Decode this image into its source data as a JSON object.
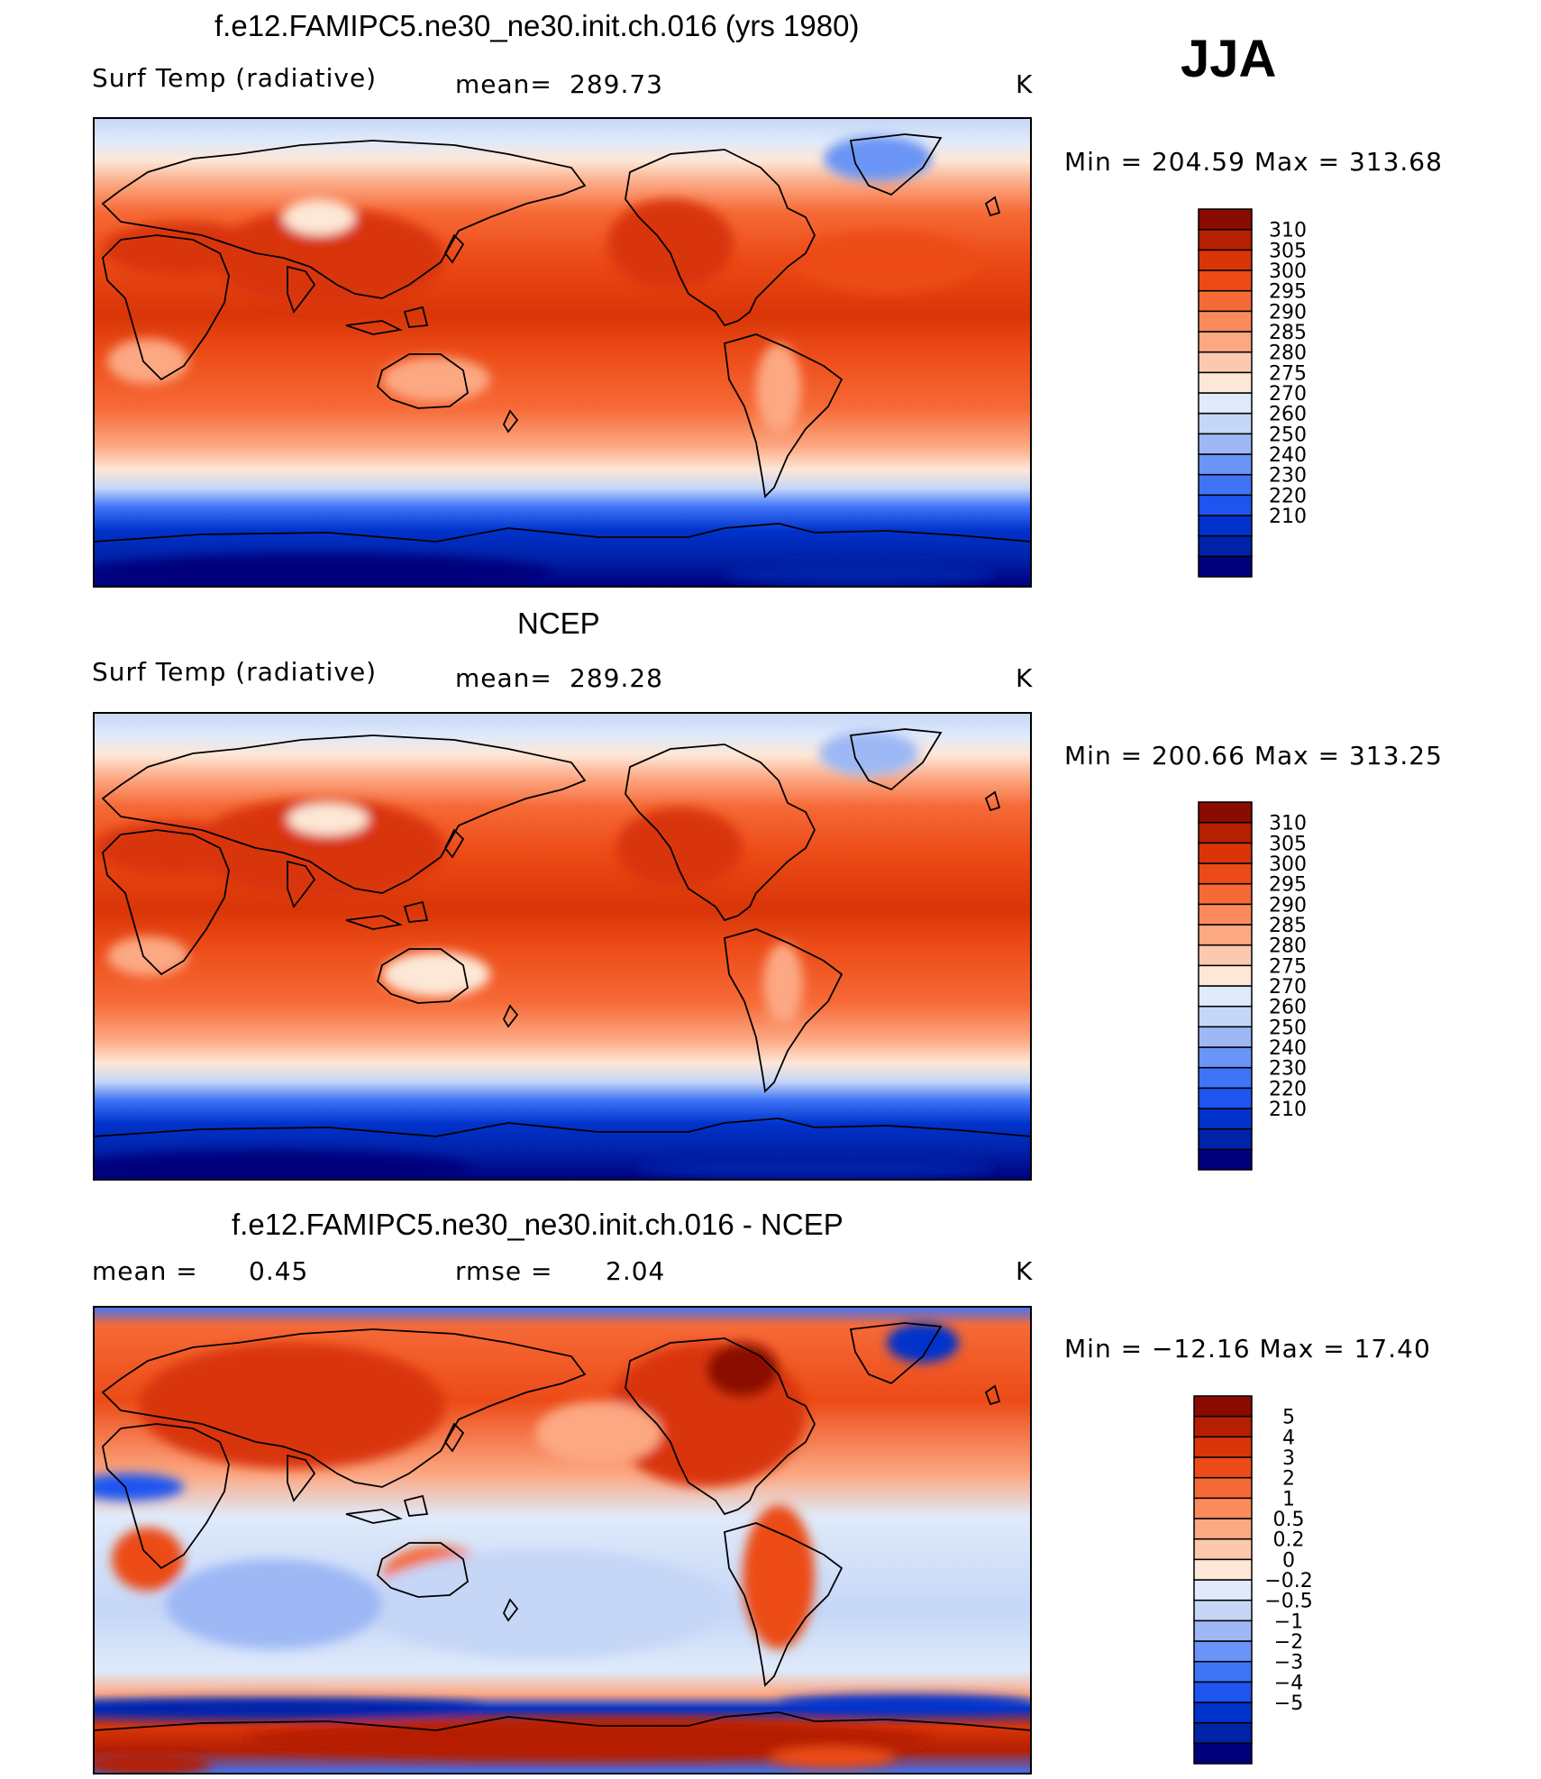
{
  "season": "JJA",
  "colors": {
    "abs_scale": [
      "#00007d",
      "#0022a8",
      "#0033cc",
      "#1e54f0",
      "#3f74f7",
      "#6a94f5",
      "#9db8f5",
      "#c5d6f7",
      "#dfeafa",
      "#fde7d6",
      "#fcc9ae",
      "#fca883",
      "#fb8a5c",
      "#f66a37",
      "#ec4b17",
      "#d93508",
      "#b51f02",
      "#8a0b00"
    ],
    "diff_scale": [
      "#00007d",
      "#0022a8",
      "#0033cc",
      "#1e54f0",
      "#3f74f7",
      "#6a94f5",
      "#9db8f5",
      "#c5d6f7",
      "#dfeafa",
      "#fde7d6",
      "#fcc9ae",
      "#fca883",
      "#fb8a5c",
      "#f66a37",
      "#ec4b17",
      "#d93508",
      "#b51f02",
      "#8a0b00"
    ]
  },
  "chart_data": [
    {
      "type": "heatmap",
      "title": "f.e12.FAMIPC5.ne30_ne30.init.ch.016 (yrs 1980)",
      "left_label": "Surf Temp (radiative)",
      "stat_label": "mean=",
      "stat_value": "289.73",
      "units": "K",
      "min_text": "Min = 204.59 Max = 313.68",
      "min": 204.59,
      "max": 313.68,
      "mean": 289.73,
      "colorbar_levels": [
        "310",
        "305",
        "300",
        "295",
        "290",
        "285",
        "280",
        "275",
        "270",
        "260",
        "250",
        "240",
        "230",
        "220",
        "210"
      ]
    },
    {
      "type": "heatmap",
      "title": "NCEP",
      "left_label": "Surf Temp (radiative)",
      "stat_label": "mean=",
      "stat_value": "289.28",
      "units": "K",
      "min_text": "Min = 200.66 Max = 313.25",
      "min": 200.66,
      "max": 313.25,
      "mean": 289.28,
      "colorbar_levels": [
        "310",
        "305",
        "300",
        "295",
        "290",
        "285",
        "280",
        "275",
        "270",
        "260",
        "250",
        "240",
        "230",
        "220",
        "210"
      ]
    },
    {
      "type": "heatmap",
      "title": "f.e12.FAMIPC5.ne30_ne30.init.ch.016 - NCEP",
      "left_label": "mean =",
      "left_value": "0.45",
      "stat_label": "rmse =",
      "stat_value": "2.04",
      "units": "K",
      "min_text": "Min = −12.16 Max = 17.40",
      "min": -12.16,
      "max": 17.4,
      "mean": 0.45,
      "rmse": 2.04,
      "colorbar_levels": [
        "5",
        "4",
        "3",
        "2",
        "1",
        "0.5",
        "0.2",
        "0",
        "−0.2",
        "−0.5",
        "−1",
        "−2",
        "−3",
        "−4",
        "−5"
      ]
    }
  ]
}
